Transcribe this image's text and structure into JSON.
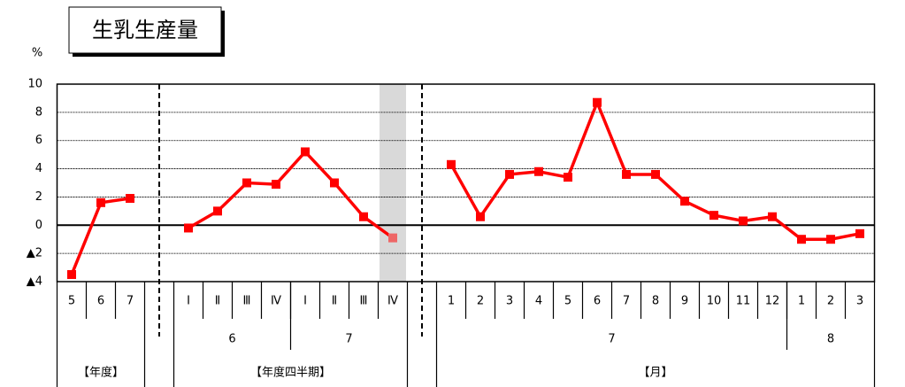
{
  "chart_data": {
    "type": "line",
    "title": "生乳生産量",
    "y_unit": "%",
    "color": "#ff0000",
    "highlight_color": "#ee6666",
    "highlight_band_color": "#d9d9d9",
    "ylim": [
      -4,
      10
    ],
    "yticks": [
      {
        "value": -4,
        "label": "▲4"
      },
      {
        "value": -2,
        "label": "▲2"
      },
      0,
      2,
      4,
      6,
      8,
      10
    ],
    "grid": true,
    "sections": [
      {
        "label": "【年度】",
        "groups": [
          {
            "label": null,
            "categories": [
              "5",
              "6",
              "7"
            ],
            "values": [
              -3.5,
              1.6,
              1.9
            ]
          }
        ]
      },
      {
        "label": "【年度四半期】",
        "groups": [
          {
            "label": "6",
            "categories": [
              "Ⅰ",
              "Ⅱ",
              "Ⅲ",
              "Ⅳ"
            ],
            "values": [
              -0.2,
              1.0,
              3.0,
              2.9
            ]
          },
          {
            "label": "7",
            "categories": [
              "Ⅰ",
              "Ⅱ",
              "Ⅲ",
              "Ⅳ"
            ],
            "values": [
              5.2,
              3.0,
              0.6,
              -0.9
            ],
            "highlight": 3
          }
        ]
      },
      {
        "label": "【月】",
        "groups": [
          {
            "label": "7",
            "categories": [
              "1",
              "2",
              "3",
              "4",
              "5",
              "6",
              "7",
              "8",
              "9",
              "10",
              "11",
              "12"
            ],
            "values": [
              4.3,
              0.6,
              3.6,
              3.8,
              3.4,
              8.7,
              3.6,
              3.6,
              1.7,
              0.7,
              0.3,
              0.6
            ]
          },
          {
            "label": "8",
            "categories": [
              "1",
              "2",
              "3"
            ],
            "values": [
              -1.0,
              -1.0,
              -0.6
            ]
          }
        ]
      }
    ]
  }
}
